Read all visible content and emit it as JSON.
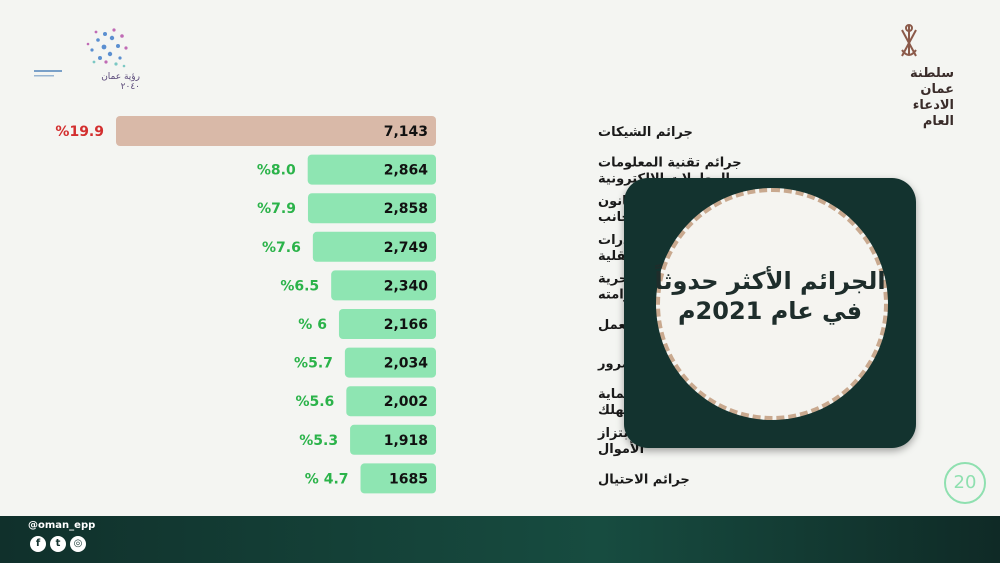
{
  "header": {
    "left_logo_text": "رؤية عمان ٢٠٤٠",
    "right_logo_line1": "سلطنة عمان",
    "right_logo_line2": "الادعاء العام"
  },
  "panel": {
    "title_line1": "الجرائم الأكثر حدوثاً",
    "title_line2": "في عام 2021م"
  },
  "page_number": "20",
  "footer": {
    "handle": "@oman_epp"
  },
  "colors": {
    "top_bar": "#d9b9a8",
    "top_pct": "#d32f2f",
    "bar": "#8ee5b2",
    "pct": "#2bb34a",
    "panel": "#13332f"
  },
  "chart_data": {
    "type": "bar",
    "orientation": "horizontal",
    "title": "الجرائم الأكثر حدوثاً في عام 2021م",
    "xlim": [
      0,
      7143
    ],
    "categories": [
      [
        "جرائم الشيكات"
      ],
      [
        "جرائم تقنية المعلومات",
        "والمعاملات الإلكترونية"
      ],
      [
        "جرائم مخالفة قانون",
        "إقامة الأجانب"
      ],
      [
        "جرائم المخدرات",
        "والمؤثرات العقلية"
      ],
      [
        "الجرائم الماسة بحرية",
        "الإنسان وكرامته"
      ],
      [
        "مخالفة قانون العمل"
      ],
      [
        "مخالفة قانون المرور"
      ],
      [
        "مخالفة قانون حماية",
        "المستهلك"
      ],
      [
        "جرائم السرقة وابتزاز",
        "الأموال"
      ],
      [
        "جرائم الاحتيال"
      ]
    ],
    "values": [
      7143,
      2864,
      2858,
      2749,
      2340,
      2166,
      2034,
      2002,
      1918,
      1685
    ],
    "value_labels": [
      "7,143",
      "2,864",
      "2,858",
      "2,749",
      "2,340",
      "2,166",
      "2,034",
      "2,002",
      "1,918",
      "1685"
    ],
    "percent_labels": [
      "%19.9",
      "%8.0",
      "%7.9",
      "%7.6",
      "%6.5",
      "% 6",
      "%5.7",
      "%5.6",
      "%5.3",
      "% 4.7"
    ]
  }
}
